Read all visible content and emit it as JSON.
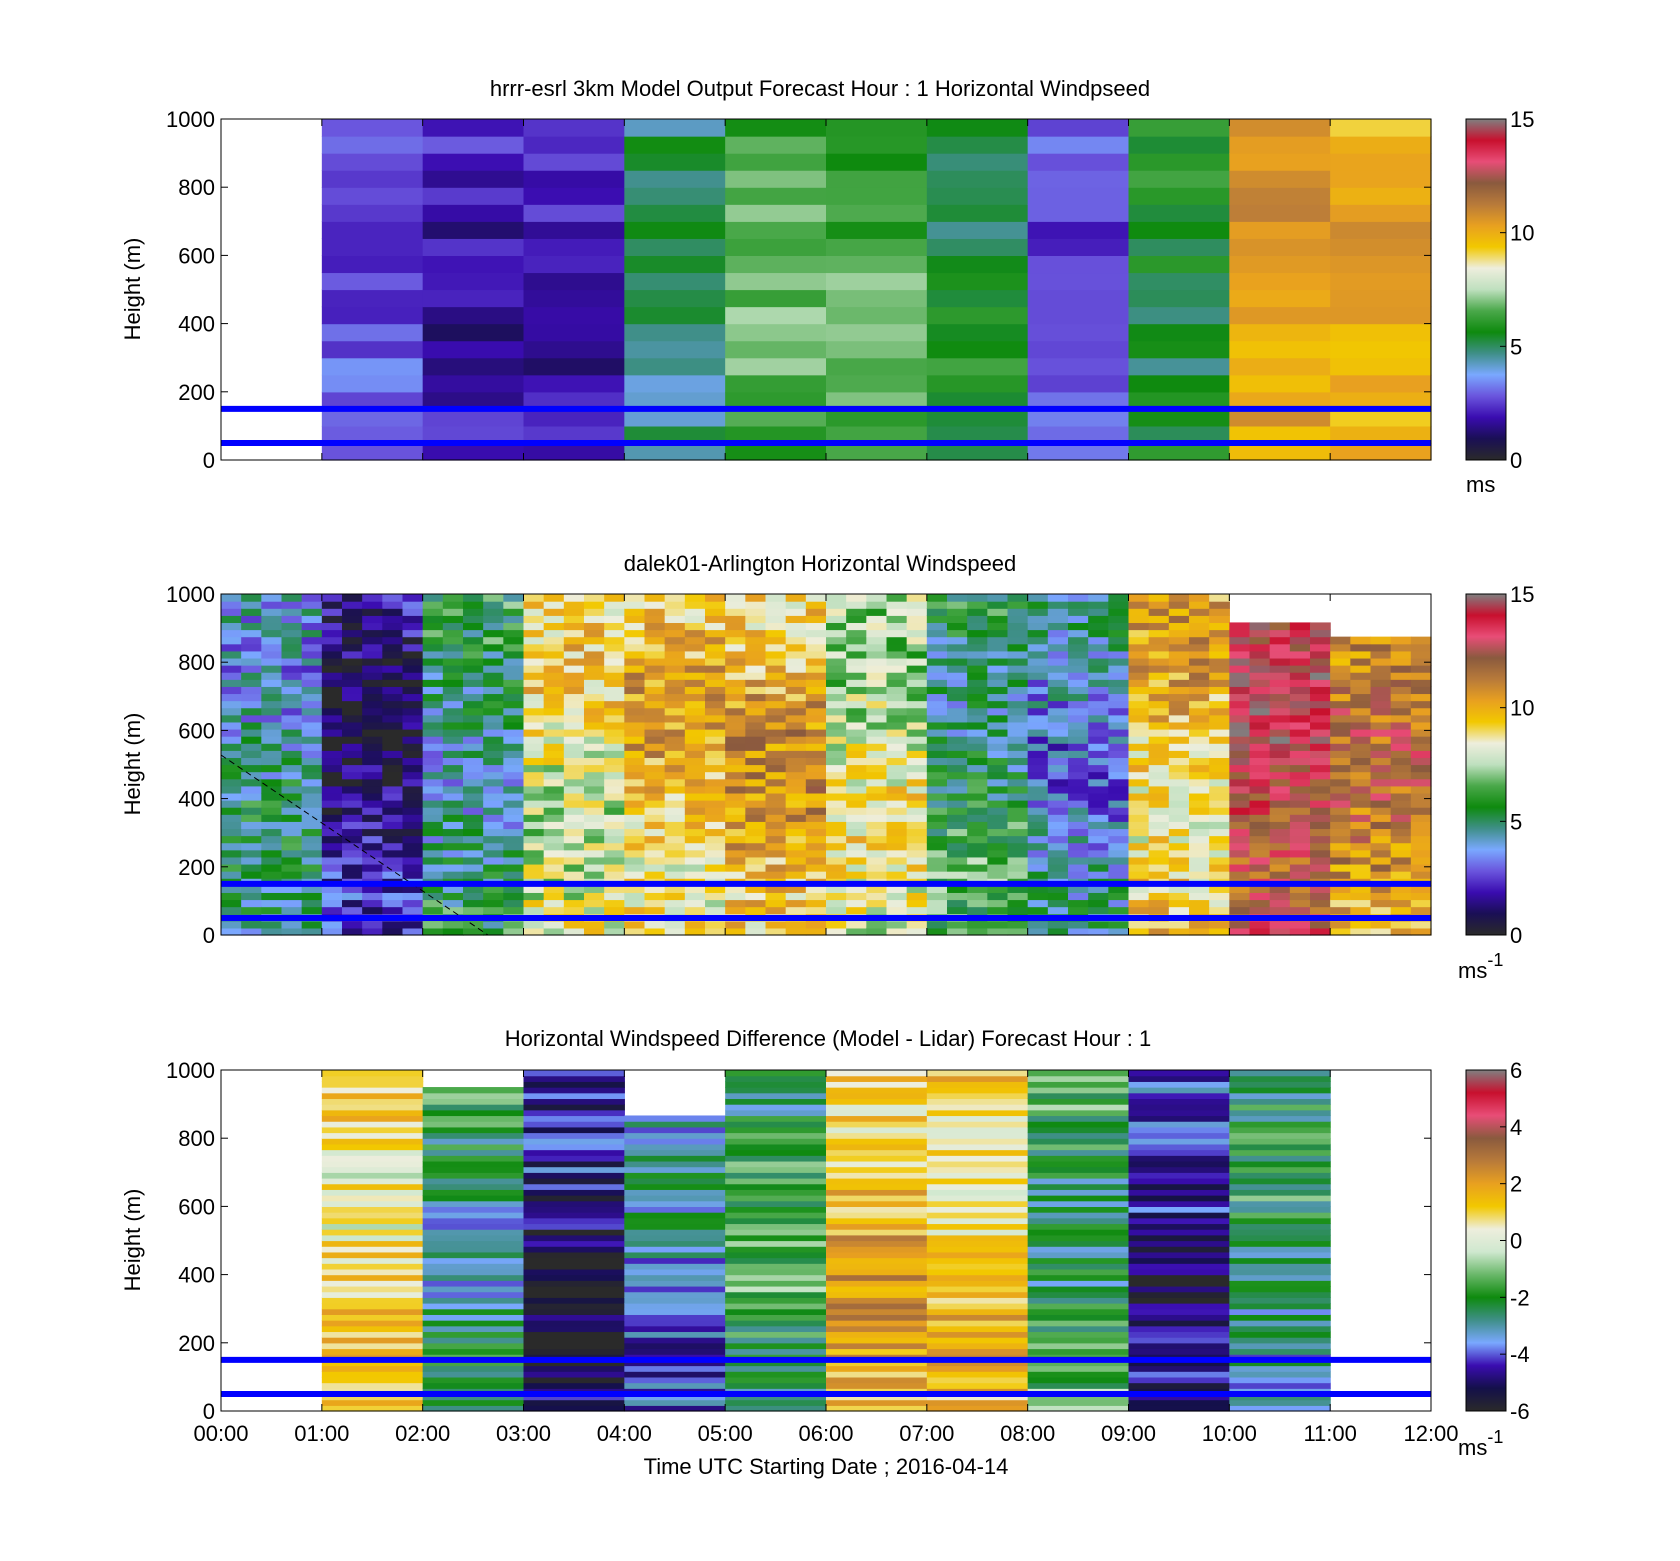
{
  "figure": {
    "xlabel": "Time UTC  Starting Date ; 2016-04-14",
    "x_ticks": [
      "00:00",
      "01:00",
      "02:00",
      "03:00",
      "04:00",
      "05:00",
      "06:00",
      "07:00",
      "08:00",
      "09:00",
      "10:00",
      "11:00",
      "12:00"
    ]
  },
  "colors": {
    "reference_line": "#0000ff",
    "speed_colormap": [
      "#2a2a2a",
      "#1a0f55",
      "#3a0cb0",
      "#6a55dd",
      "#7aa8ff",
      "#3f8f88",
      "#0e8a0e",
      "#4aa84a",
      "#bfe0bf",
      "#eeeedd",
      "#f2c800",
      "#e8a020",
      "#b87a3a",
      "#8a5a3e",
      "#e84d77",
      "#c8102e",
      "#808080"
    ],
    "diff_colormap": [
      "#2a2a2a",
      "#14104a",
      "#3a0cb0",
      "#7aa8ff",
      "#3f8f88",
      "#0e8a0e",
      "#6ab86a",
      "#cfe8cf",
      "#eeeedd",
      "#f2c800",
      "#e8a020",
      "#b87a3a",
      "#8a5a3e",
      "#e84d77",
      "#c8102e",
      "#808080"
    ]
  },
  "chart_data": [
    {
      "type": "heatmap",
      "title": "hrrr-esrl 3km Model Output   Forecast Hour : 1 Horizontal Windpseed",
      "ylabel": "Height (m)",
      "xlim": [
        "00:00",
        "12:00"
      ],
      "ylim": [
        0,
        1000
      ],
      "y_ticks": [
        0,
        200,
        400,
        600,
        800,
        1000
      ],
      "colorbar": {
        "range": [
          0,
          15
        ],
        "ticks": [
          0,
          5,
          10,
          15
        ],
        "unit": "ms"
      },
      "reference_heights_m": [
        150,
        50
      ],
      "series": [
        {
          "name": "wind_speed_ms",
          "x_start": [
            "00:00",
            "01:00",
            "02:00",
            "03:00",
            "04:00",
            "05:00",
            "06:00",
            "07:00",
            "08:00",
            "09:00",
            "10:00",
            "11:00"
          ],
          "values": [
            null,
            2.8,
            2.0,
            2.0,
            5.0,
            6.5,
            6.5,
            5.5,
            2.8,
            5.5,
            10.5,
            10.0
          ]
        }
      ]
    },
    {
      "type": "heatmap",
      "title": "dalek01-Arlington  Horizontal Windspeed",
      "ylabel": "Height (m)",
      "xlim": [
        "00:00",
        "12:00"
      ],
      "ylim": [
        0,
        1000
      ],
      "y_ticks": [
        0,
        200,
        400,
        600,
        800,
        1000
      ],
      "colorbar": {
        "range": [
          0,
          15
        ],
        "ticks": [
          0,
          5,
          10,
          15
        ],
        "unit": "ms-1"
      },
      "reference_heights_m": [
        150,
        50
      ],
      "series": [
        {
          "name": "wind_speed_ms_profile_mean",
          "x_start": [
            "00:00",
            "01:00",
            "02:00",
            "03:00",
            "04:00",
            "05:00",
            "06:00",
            "07:00",
            "08:00",
            "09:00",
            "10:00",
            "11:00"
          ],
          "values": [
            4.5,
            1.5,
            5.0,
            8.5,
            9.5,
            10.0,
            8.0,
            5.5,
            4.0,
            9.5,
            13.0,
            11.0
          ]
        }
      ]
    },
    {
      "type": "heatmap",
      "title": "Horizontal Windspeed Difference (Model - Lidar) Forecast Hour : 1",
      "ylabel": "Height (m)",
      "xlim": [
        "00:00",
        "12:00"
      ],
      "ylim": [
        0,
        1000
      ],
      "y_ticks": [
        0,
        200,
        400,
        600,
        800,
        1000
      ],
      "colorbar": {
        "range": [
          -6,
          6
        ],
        "ticks": [
          -6,
          -4,
          -2,
          0,
          2,
          4,
          6
        ],
        "unit": "ms-1"
      },
      "reference_heights_m": [
        150,
        50
      ],
      "series": [
        {
          "name": "speed_difference_ms",
          "x_start": [
            "00:00",
            "01:00",
            "02:00",
            "03:00",
            "04:00",
            "05:00",
            "06:00",
            "07:00",
            "08:00",
            "09:00",
            "10:00",
            "11:00"
          ],
          "values": [
            null,
            1.0,
            -2.5,
            -5.0,
            -3.5,
            -2.0,
            1.5,
            1.0,
            -2.0,
            -4.5,
            -2.5,
            null
          ]
        }
      ]
    }
  ]
}
